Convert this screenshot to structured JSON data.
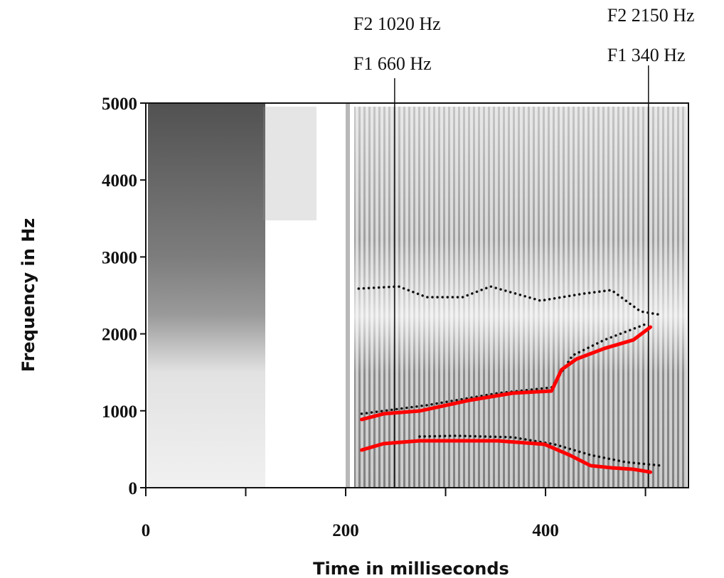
{
  "chart_data": {
    "type": "line",
    "xlabel": "Time in milliseconds",
    "ylabel": "Frequency in Hz",
    "xlim": [
      0,
      543
    ],
    "xticks": [
      0,
      200,
      400
    ],
    "xminor_ticks": [
      100,
      300,
      500
    ],
    "ylim": [
      0,
      5000
    ],
    "yticks": [
      0,
      1000,
      2000,
      3000,
      4000,
      5000
    ],
    "annotations": [
      {
        "x": 249,
        "lines": [
          "F2 1020 Hz",
          "F1 660 Hz"
        ]
      },
      {
        "x": 503,
        "lines": [
          "F2 2150 Hz",
          "F1 340 Hz"
        ]
      }
    ],
    "series": [
      {
        "color": "#111111",
        "style": "dotted",
        "x": [
          213,
          253,
          281,
          317,
          345,
          395,
          438,
          466,
          495,
          516
        ],
        "values": [
          2588,
          2616,
          2477,
          2477,
          2616,
          2431,
          2523,
          2569,
          2292,
          2246
        ]
      },
      {
        "color": "#111111",
        "style": "dotted",
        "x": [
          216,
          281,
          352,
          406,
          427,
          459,
          502
        ],
        "values": [
          961,
          1072,
          1229,
          1303,
          1719,
          1922,
          2135
        ]
      },
      {
        "color": "#111111",
        "style": "dotted",
        "x": [
          274,
          310,
          367,
          409,
          445,
          480,
          516
        ],
        "values": [
          665,
          675,
          656,
          564,
          425,
          333,
          287
        ]
      },
      {
        "color": "#ff0000",
        "style": "solid",
        "x": [
          216,
          238,
          274,
          324,
          367,
          406,
          416,
          431,
          459,
          488,
          505
        ],
        "values": [
          887,
          961,
          998,
          1137,
          1229,
          1257,
          1534,
          1673,
          1811,
          1922,
          2089
        ]
      },
      {
        "color": "#ff0000",
        "style": "solid",
        "x": [
          216,
          238,
          274,
          352,
          399,
          424,
          445,
          466,
          488,
          505
        ],
        "values": [
          490,
          573,
          610,
          610,
          564,
          425,
          287,
          259,
          240,
          203
        ]
      }
    ]
  }
}
